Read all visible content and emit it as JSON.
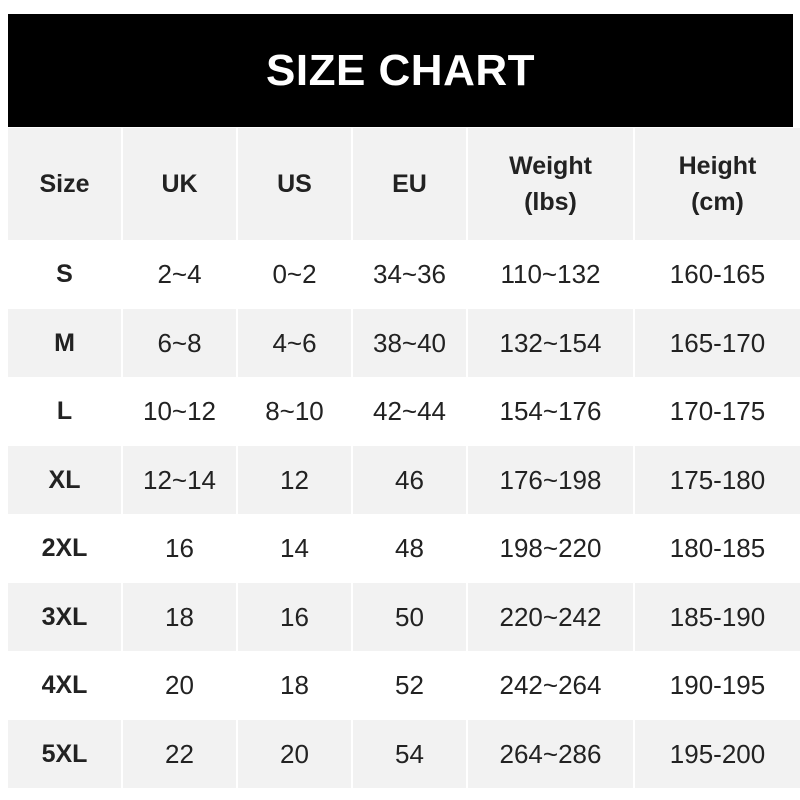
{
  "title": "SIZE CHART",
  "headers": [
    {
      "line1": "Size",
      "line2": ""
    },
    {
      "line1": "UK",
      "line2": ""
    },
    {
      "line1": "US",
      "line2": ""
    },
    {
      "line1": "EU",
      "line2": ""
    },
    {
      "line1": "Weight",
      "line2": "(lbs)"
    },
    {
      "line1": "Height",
      "line2": "(cm)"
    }
  ],
  "rows": [
    [
      "S",
      "2~4",
      "0~2",
      "34~36",
      "110~132",
      "160-165"
    ],
    [
      "M",
      "6~8",
      "4~6",
      "38~40",
      "132~154",
      "165-170"
    ],
    [
      "L",
      "10~12",
      "8~10",
      "42~44",
      "154~176",
      "170-175"
    ],
    [
      "XL",
      "12~14",
      "12",
      "46",
      "176~198",
      "175-180"
    ],
    [
      "2XL",
      "16",
      "14",
      "48",
      "198~220",
      "180-185"
    ],
    [
      "3XL",
      "18",
      "16",
      "50",
      "220~242",
      "185-190"
    ],
    [
      "4XL",
      "20",
      "18",
      "52",
      "242~264",
      "190-195"
    ],
    [
      "5XL",
      "22",
      "20",
      "54",
      "264~286",
      "195-200"
    ]
  ],
  "colors": {
    "title_bg": "#000000",
    "stripe": "#f2f2f2",
    "text": "#222222"
  }
}
